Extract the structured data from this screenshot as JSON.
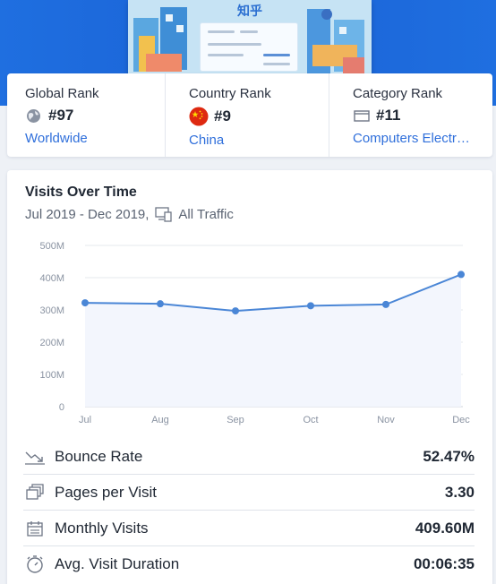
{
  "hero": {
    "thumbnail_title": "知乎"
  },
  "ranks": {
    "global": {
      "label": "Global Rank",
      "value": "#97",
      "link": "Worldwide",
      "icon": "globe-icon"
    },
    "country": {
      "label": "Country Rank",
      "value": "#9",
      "link": "China",
      "icon": "china-flag-icon"
    },
    "category": {
      "label": "Category Rank",
      "value": "#11",
      "link": "Computers Electr…",
      "icon": "folder-icon"
    }
  },
  "visits": {
    "title": "Visits Over Time",
    "date_range": "Jul 2019 - Dec 2019,",
    "traffic_filter": "All Traffic"
  },
  "chart_data": {
    "type": "area",
    "categories": [
      "Jul",
      "Aug",
      "Sep",
      "Oct",
      "Nov",
      "Dec"
    ],
    "values": [
      322,
      319,
      297,
      313,
      317,
      410
    ],
    "unit": "M",
    "ylim": [
      0,
      500
    ],
    "yticks": [
      "0",
      "100M",
      "200M",
      "300M",
      "400M",
      "500M"
    ],
    "grid": true,
    "line_color": "#4a86d6",
    "fill_color": "#f3f6fd"
  },
  "metrics": [
    {
      "label": "Bounce Rate",
      "value": "52.47%",
      "icon": "trend-down-icon"
    },
    {
      "label": "Pages per Visit",
      "value": "3.30",
      "icon": "pages-icon"
    },
    {
      "label": "Monthly Visits",
      "value": "409.60M",
      "icon": "calendar-icon"
    },
    {
      "label": "Avg. Visit Duration",
      "value": "00:06:35",
      "icon": "stopwatch-icon"
    }
  ],
  "colors": {
    "brand_blue": "#1f6fe0",
    "link": "#2f6fdb",
    "china_red": "#de2910"
  }
}
